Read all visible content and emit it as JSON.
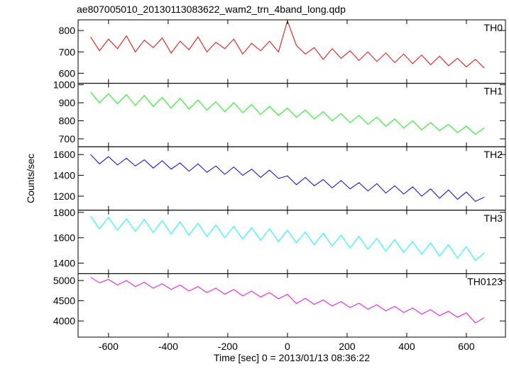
{
  "title": "ae807005010_20130113083622_wam2_trn_4band_long.qdp",
  "y_label": "Counts/sec",
  "x_label": "Time [sec] 0 = 2013/01/13 08:36:22",
  "chart_data": [
    {
      "type": "line",
      "label": "TH0",
      "color": "#ff0000",
      "x": [
        -660,
        -630,
        -600,
        -570,
        -540,
        -510,
        -480,
        -450,
        -420,
        -390,
        -360,
        -330,
        -300,
        -270,
        -240,
        -210,
        -180,
        -150,
        -120,
        -90,
        -60,
        -30,
        0,
        30,
        60,
        90,
        120,
        150,
        180,
        210,
        240,
        270,
        300,
        330,
        360,
        390,
        420,
        450,
        480,
        510,
        540,
        570,
        600,
        630,
        660
      ],
      "values": [
        770,
        705,
        760,
        715,
        775,
        700,
        755,
        720,
        765,
        695,
        750,
        710,
        770,
        700,
        745,
        715,
        760,
        690,
        740,
        705,
        750,
        700,
        845,
        730,
        690,
        720,
        665,
        715,
        670,
        705,
        660,
        700,
        655,
        695,
        650,
        690,
        645,
        685,
        640,
        680,
        635,
        670,
        630,
        665,
        625
      ],
      "xlim": [
        -702,
        731
      ],
      "xticks": [
        -600,
        -400,
        -200,
        0,
        200,
        400,
        600
      ],
      "ylim": [
        553,
        850
      ],
      "yticks": [
        600,
        700,
        800
      ]
    },
    {
      "type": "line",
      "label": "TH1",
      "color": "#00ff00",
      "x": [
        -660,
        -630,
        -600,
        -570,
        -540,
        -510,
        -480,
        -450,
        -420,
        -390,
        -360,
        -330,
        -300,
        -270,
        -240,
        -210,
        -180,
        -150,
        -120,
        -90,
        -60,
        -30,
        0,
        30,
        60,
        90,
        120,
        150,
        180,
        210,
        240,
        270,
        300,
        330,
        360,
        390,
        420,
        450,
        480,
        510,
        540,
        570,
        600,
        630,
        660
      ],
      "values": [
        960,
        900,
        950,
        895,
        945,
        885,
        940,
        880,
        930,
        870,
        925,
        865,
        915,
        860,
        905,
        850,
        900,
        845,
        890,
        835,
        880,
        830,
        870,
        820,
        860,
        810,
        850,
        800,
        840,
        790,
        830,
        780,
        820,
        770,
        810,
        760,
        800,
        750,
        790,
        745,
        780,
        735,
        770,
        725,
        760
      ],
      "xlim": [
        -702,
        731
      ],
      "xticks": [
        -600,
        -400,
        -200,
        0,
        200,
        400,
        600
      ],
      "ylim": [
        656,
        1008
      ],
      "yticks": [
        700,
        800,
        900,
        1000
      ]
    },
    {
      "type": "line",
      "label": "TH2",
      "color": "#0000ff",
      "x": [
        -660,
        -630,
        -600,
        -570,
        -540,
        -510,
        -480,
        -450,
        -420,
        -390,
        -360,
        -330,
        -300,
        -270,
        -240,
        -210,
        -180,
        -150,
        -120,
        -90,
        -60,
        -30,
        0,
        30,
        60,
        90,
        120,
        150,
        180,
        210,
        240,
        270,
        300,
        330,
        360,
        390,
        420,
        450,
        480,
        510,
        540,
        570,
        600,
        630,
        660
      ],
      "values": [
        1600,
        1510,
        1580,
        1500,
        1565,
        1490,
        1550,
        1470,
        1540,
        1460,
        1520,
        1440,
        1510,
        1430,
        1490,
        1410,
        1480,
        1400,
        1460,
        1380,
        1450,
        1370,
        1395,
        1310,
        1380,
        1300,
        1360,
        1280,
        1350,
        1270,
        1330,
        1250,
        1320,
        1230,
        1300,
        1220,
        1290,
        1200,
        1270,
        1180,
        1260,
        1170,
        1240,
        1150,
        1190
      ],
      "xlim": [
        -702,
        731
      ],
      "xticks": [
        -600,
        -400,
        -200,
        0,
        200,
        400,
        600
      ],
      "ylim": [
        1065,
        1675
      ],
      "yticks": [
        1200,
        1400,
        1600
      ]
    },
    {
      "type": "line",
      "label": "TH3",
      "color": "#00ffff",
      "x": [
        -660,
        -630,
        -600,
        -570,
        -540,
        -510,
        -480,
        -450,
        -420,
        -390,
        -360,
        -330,
        -300,
        -270,
        -240,
        -210,
        -180,
        -150,
        -120,
        -90,
        -60,
        -30,
        0,
        30,
        60,
        90,
        120,
        150,
        180,
        210,
        240,
        270,
        300,
        330,
        360,
        390,
        420,
        450,
        480,
        510,
        540,
        570,
        600,
        630,
        660
      ],
      "values": [
        1770,
        1670,
        1760,
        1660,
        1750,
        1650,
        1745,
        1640,
        1735,
        1630,
        1725,
        1620,
        1715,
        1610,
        1700,
        1600,
        1690,
        1590,
        1680,
        1580,
        1670,
        1570,
        1660,
        1560,
        1645,
        1545,
        1635,
        1535,
        1620,
        1520,
        1610,
        1510,
        1595,
        1495,
        1585,
        1485,
        1570,
        1470,
        1560,
        1455,
        1545,
        1440,
        1530,
        1420,
        1480
      ],
      "xlim": [
        -702,
        731
      ],
      "xticks": [
        -600,
        -400,
        -200,
        0,
        200,
        400,
        600
      ],
      "ylim": [
        1317,
        1817
      ],
      "yticks": [
        1400,
        1600,
        1800
      ]
    },
    {
      "type": "line",
      "label": "TH0123",
      "color": "#ff00ff",
      "x": [
        -660,
        -630,
        -600,
        -570,
        -540,
        -510,
        -480,
        -450,
        -420,
        -390,
        -360,
        -330,
        -300,
        -270,
        -240,
        -210,
        -180,
        -150,
        -120,
        -90,
        -60,
        -30,
        0,
        30,
        60,
        90,
        120,
        150,
        180,
        210,
        240,
        270,
        300,
        330,
        360,
        390,
        420,
        450,
        480,
        510,
        540,
        570,
        600,
        630,
        660
      ],
      "values": [
        5080,
        4940,
        5030,
        4890,
        5000,
        4850,
        4960,
        4810,
        4920,
        4780,
        4890,
        4740,
        4850,
        4700,
        4810,
        4660,
        4780,
        4620,
        4740,
        4590,
        4700,
        4550,
        4660,
        4430,
        4560,
        4410,
        4520,
        4370,
        4480,
        4330,
        4440,
        4290,
        4400,
        4250,
        4360,
        4210,
        4320,
        4170,
        4280,
        4130,
        4240,
        4090,
        4200,
        3950,
        4080
      ],
      "xlim": [
        -702,
        731
      ],
      "xticks": [
        -600,
        -400,
        -200,
        0,
        200,
        400,
        600
      ],
      "ylim": [
        3600,
        5170
      ],
      "yticks": [
        4000,
        4500,
        5000
      ]
    }
  ]
}
